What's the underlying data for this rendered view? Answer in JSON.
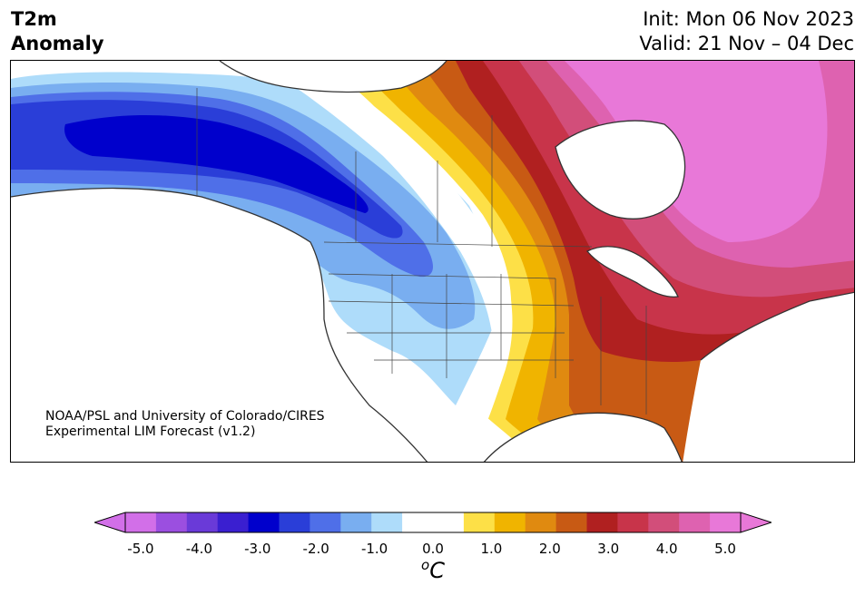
{
  "title": {
    "left_line1": "T2m",
    "left_line2": "Anomaly",
    "right_line1": "Init: Mon 06 Nov 2023",
    "right_line2": "Valid: 21 Nov – 04 Dec"
  },
  "credit": {
    "line1": "NOAA/PSL and University of Colorado/CIRES",
    "line2": "Experimental LIM Forecast (v1.2)"
  },
  "colorbar": {
    "ticks": [
      "-5.0",
      "-4.0",
      "-3.0",
      "-2.0",
      "-1.0",
      "0.0",
      "1.0",
      "2.0",
      "3.0",
      "4.0",
      "5.0"
    ],
    "unit_base": "C",
    "unit_sup": "o",
    "colors": [
      "#d26fe8",
      "#9b4fe0",
      "#6a3ad8",
      "#3a1fd0",
      "#0000cc",
      "#2a3ed8",
      "#4f6fe8",
      "#79aef0",
      "#aedcfa",
      "#ffffff",
      "#ffffff",
      "#fde047",
      "#f0b400",
      "#e08a10",
      "#c85a14",
      "#b02020",
      "#c8344a",
      "#d24e7a",
      "#de62b0",
      "#e878d8"
    ]
  }
}
